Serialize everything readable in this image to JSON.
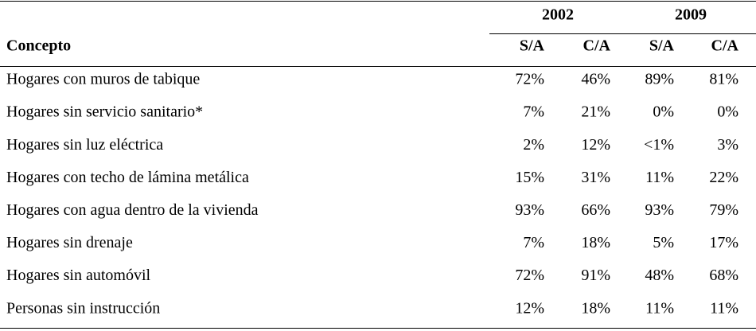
{
  "table": {
    "years": [
      "2002",
      "2009"
    ],
    "columns": [
      "Concepto",
      "S/A",
      "C/A",
      "S/A",
      "C/A"
    ],
    "rows": [
      [
        "Hogares con muros de tabique",
        "72%",
        "46%",
        "89%",
        "81%"
      ],
      [
        "Hogares sin servicio sanitario*",
        "7%",
        "21%",
        "0%",
        "0%"
      ],
      [
        "Hogares sin luz eléctrica",
        "2%",
        "12%",
        "<1%",
        "3%"
      ],
      [
        "Hogares con techo de lámina metálica",
        "15%",
        "31%",
        "11%",
        "22%"
      ],
      [
        "Hogares con agua dentro de la vivienda",
        "93%",
        "66%",
        "93%",
        "79%"
      ],
      [
        "Hogares sin drenaje",
        "7%",
        "18%",
        "5%",
        "17%"
      ],
      [
        "Hogares sin automóvil",
        "72%",
        "91%",
        "48%",
        "68%"
      ],
      [
        "Personas sin instrucción",
        "12%",
        "18%",
        "11%",
        "11%"
      ]
    ]
  }
}
